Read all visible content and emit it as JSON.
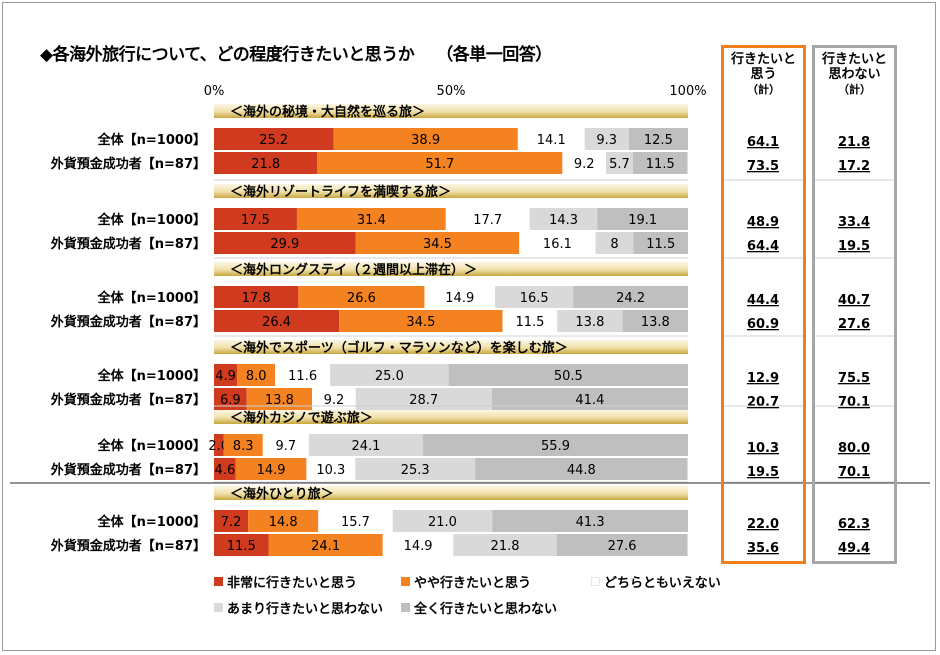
{
  "title": "◆各海外旅行について、どの程度行きたいと思うか",
  "title_note": "（各単一回答）",
  "summary_headers": {
    "like": [
      "行きたいと",
      "思う",
      "（計）"
    ],
    "dislike": [
      "行きたいと",
      "思わない",
      "（計）"
    ]
  },
  "colors": {
    "very_much": "#d03b20",
    "somewhat": "#f58220",
    "neither": "#ffffff",
    "not_much": "#d9d9d9",
    "not_at_all": "#bfbfbf",
    "like_box": "#f07f19",
    "dislike_box": "#a6a6a6"
  },
  "legend": [
    {
      "label": "非常に行きたいと思う",
      "color": "#d03b20"
    },
    {
      "label": "やや行きたいと思う",
      "color": "#f58220"
    },
    {
      "label": "どちらともいえない",
      "color": "#ffffff"
    },
    {
      "label": "あまり行きたいと思わない",
      "color": "#d9d9d9"
    },
    {
      "label": "全く行きたいと思わない",
      "color": "#bfbfbf"
    }
  ],
  "chart_data": {
    "type": "bar",
    "orientation": "horizontal-stacked-100",
    "xlim": [
      0,
      100
    ],
    "x_ticks": [
      "0%",
      "50%",
      "100%"
    ],
    "series_names": [
      "非常に行きたいと思う",
      "やや行きたいと思う",
      "どちらともいえない",
      "あまり行きたいと思わない",
      "全く行きたいと思わない"
    ],
    "groups": [
      {
        "label": "＜海外の秘境・大自然を巡る旅＞",
        "rows": [
          {
            "label": "全体【n=1000】",
            "values": [
              25.2,
              38.9,
              14.1,
              9.3,
              12.5
            ],
            "value_labels": [
              "25.2",
              "38.9",
              "14.1",
              "9.3",
              "12.5"
            ],
            "like_total": "64.1",
            "dislike_total": "21.8"
          },
          {
            "label": "外貨預金成功者【n=87】",
            "values": [
              21.8,
              51.7,
              9.2,
              5.7,
              11.5
            ],
            "value_labels": [
              "21.8",
              "51.7",
              "9.2",
              "5.7",
              "11.5"
            ],
            "like_total": "73.5",
            "dislike_total": "17.2"
          }
        ]
      },
      {
        "label": "＜海外リゾートライフを満喫する旅＞",
        "rows": [
          {
            "label": "全体【n=1000】",
            "values": [
              17.5,
              31.4,
              17.7,
              14.3,
              19.1
            ],
            "value_labels": [
              "17.5",
              "31.4",
              "17.7",
              "14.3",
              "19.1"
            ],
            "like_total": "48.9",
            "dislike_total": "33.4"
          },
          {
            "label": "外貨預金成功者【n=87】",
            "values": [
              29.9,
              34.5,
              16.1,
              8,
              11.5
            ],
            "value_labels": [
              "29.9",
              "34.5",
              "16.1",
              "8",
              "11.5"
            ],
            "like_total": "64.4",
            "dislike_total": "19.5"
          }
        ]
      },
      {
        "label": "＜海外ロングステイ（２週間以上滞在）＞",
        "rows": [
          {
            "label": "全体【n=1000】",
            "values": [
              17.8,
              26.6,
              14.9,
              16.5,
              24.2
            ],
            "value_labels": [
              "17.8",
              "26.6",
              "14.9",
              "16.5",
              "24.2"
            ],
            "like_total": "44.4",
            "dislike_total": "40.7"
          },
          {
            "label": "外貨預金成功者【n=87】",
            "values": [
              26.4,
              34.5,
              11.5,
              13.8,
              13.8
            ],
            "value_labels": [
              "26.4",
              "34.5",
              "11.5",
              "13.8",
              "13.8"
            ],
            "like_total": "60.9",
            "dislike_total": "27.6"
          }
        ]
      },
      {
        "label": "＜海外でスポーツ（ゴルフ・マラソンなど）を楽しむ旅＞",
        "rows": [
          {
            "label": "全体【n=1000】",
            "values": [
              4.9,
              8.0,
              11.6,
              25.0,
              50.5
            ],
            "value_labels": [
              "4.9",
              "8.0",
              "11.6",
              "25.0",
              "50.5"
            ],
            "like_total": "12.9",
            "dislike_total": "75.5"
          },
          {
            "label": "外貨預金成功者【n=87】",
            "values": [
              6.9,
              13.8,
              9.2,
              28.7,
              41.4
            ],
            "value_labels": [
              "6.9",
              "13.8",
              "9.2",
              "28.7",
              "41.4"
            ],
            "like_total": "20.7",
            "dislike_total": "70.1"
          }
        ]
      },
      {
        "label": "＜海外カジノで遊ぶ旅＞",
        "rows": [
          {
            "label": "全体【n=1000】",
            "values": [
              2.0,
              8.3,
              9.7,
              24.1,
              55.9
            ],
            "value_labels": [
              "2.0",
              "8.3",
              "9.7",
              "24.1",
              "55.9"
            ],
            "like_total": "10.3",
            "dislike_total": "80.0"
          },
          {
            "label": "外貨預金成功者【n=87】",
            "values": [
              4.6,
              14.9,
              10.3,
              25.3,
              44.8
            ],
            "value_labels": [
              "4.6",
              "14.9",
              "10.3",
              "25.3",
              "44.8"
            ],
            "like_total": "19.5",
            "dislike_total": "70.1"
          }
        ]
      },
      {
        "label": "＜海外ひとり旅＞",
        "rows": [
          {
            "label": "全体【n=1000】",
            "values": [
              7.2,
              14.8,
              15.7,
              21.0,
              41.3
            ],
            "value_labels": [
              "7.2",
              "14.8",
              "15.7",
              "21.0",
              "41.3"
            ],
            "like_total": "22.0",
            "dislike_total": "62.3"
          },
          {
            "label": "外貨預金成功者【n=87】",
            "values": [
              11.5,
              24.1,
              14.9,
              21.8,
              27.6
            ],
            "value_labels": [
              "11.5",
              "24.1",
              "14.9",
              "21.8",
              "27.6"
            ],
            "like_total": "35.6",
            "dislike_total": "49.4"
          }
        ]
      }
    ]
  }
}
